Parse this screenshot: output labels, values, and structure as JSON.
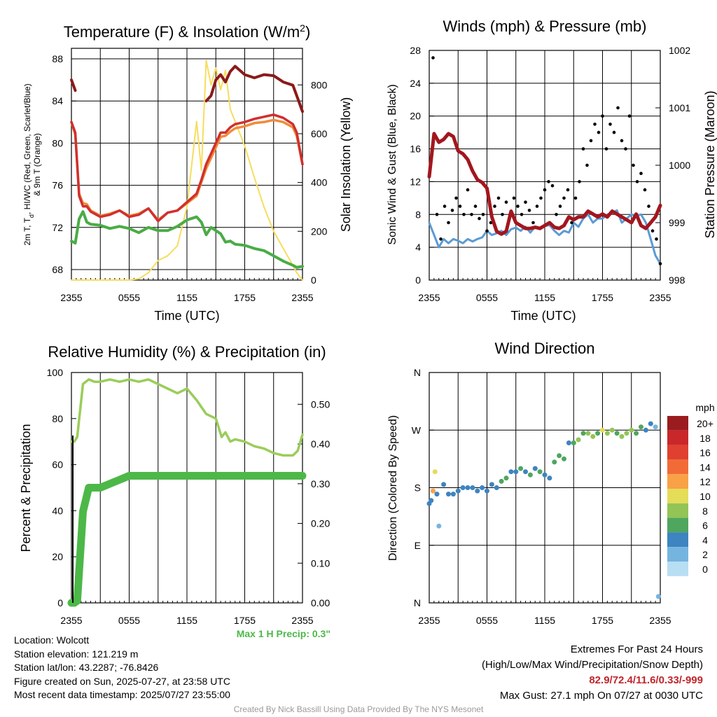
{
  "panels": {
    "temp": {
      "title_main": "Temperature (F) & Insolation (W/m",
      "title_sup": "2",
      "title_end": ")",
      "ylabel_left_line1": "2m T, T",
      "ylabel_left_sub": "d",
      "ylabel_left_rest": ", HI/WC (Red, Green, Scarlet/Blue)",
      "ylabel_left_line2": "& 9m T (Orange)",
      "ylabel_right": "Solar Insolation (Yellow)",
      "xlabel": "Time (UTC)"
    },
    "wind": {
      "title": "Winds (mph) & Pressure (mb)",
      "ylabel_left": "Sonic Wind & Gust (Blue, Black)",
      "ylabel_right": "Station Pressure (Maroon)",
      "xlabel": "Time (UTC)"
    },
    "rh": {
      "title": "Relative Humidity (%) & Precipitation (in)",
      "ylabel_left": "Percent & Precipitation",
      "annotation": "Max 1 H Precip: 0.3\""
    },
    "dir": {
      "title": "Wind Direction",
      "ylabel_left": "Direction (Colored By Speed)",
      "colorbar_title": "mph"
    }
  },
  "info": {
    "location": "Location: Wolcott",
    "elevation": "Station elevation: 121.219 m",
    "latlon": "Station lat/lon: 43.2287; -76.8426",
    "created": "Figure created on Sun, 2025-07-27, at 23:58 UTC",
    "recent": "Most recent data timestamp: 2025/07/27 23:55:00",
    "extremes_title": "Extremes For Past 24 Hours",
    "extremes_sub": "(High/Low/Max Wind/Precipitation/Snow Depth)",
    "extremes_values": "82.9/72.4/11.6/0.33/-999",
    "max_gust": "Max Gust: 27.1 mph On 07/27 at 0030 UTC",
    "credit": "Created By Nick Bassill Using Data Provided By The NYS Mesonet"
  },
  "colors": {
    "temp_red": "#d12f2f",
    "heat_index_scarlet": "#8b1a1a",
    "dewpoint_green": "#4aac45",
    "temp9m_orange": "#f08c3a",
    "solar_yellow": "#f7dd5e",
    "wind_blue": "#5b9bd5",
    "gust_black": "#000000",
    "pressure_maroon": "#a3161e",
    "rh_lightgreen": "#9acd59",
    "precip_green": "#4cb848",
    "extremes_red": "#c0262c"
  },
  "chart_data": [
    {
      "type": "line",
      "title": "Temperature (F) & Insolation (W/m2)",
      "xlabel": "Time (UTC)",
      "ylabel": "2m T, Td, HI/WC (Red, Green, Scarlet/Blue) & 9m T (Orange)",
      "y2label": "Solar Insolation (Yellow)",
      "x_ticks": [
        "2355",
        "0555",
        "1155",
        "1755",
        "2355"
      ],
      "ylim": [
        67,
        89
      ],
      "y_ticks": [
        68,
        72,
        76,
        80,
        84,
        88
      ],
      "y2lim": [
        0,
        950
      ],
      "y2_ticks": [
        0,
        200,
        400,
        600,
        800
      ],
      "x_hours": [
        0,
        0.4,
        0.8,
        1.2,
        1.6,
        2,
        3,
        4,
        5,
        6,
        7,
        8,
        9,
        10,
        11,
        12,
        13,
        13.5,
        14,
        14.5,
        15,
        15.5,
        16,
        16.5,
        17,
        18,
        19,
        20,
        21,
        22,
        23,
        23.4,
        24
      ],
      "series": [
        {
          "name": "2m T",
          "color": "#d12f2f",
          "values": [
            82,
            81,
            75,
            74,
            74,
            73.5,
            73,
            73.2,
            73.6,
            73,
            73.2,
            73.8,
            72.6,
            73.4,
            73.6,
            74.4,
            75.2,
            76.5,
            78,
            79,
            80,
            81,
            81,
            81.5,
            81.8,
            82,
            82.3,
            82.5,
            82.7,
            82.4,
            81.8,
            81,
            78
          ]
        },
        {
          "name": "9m T",
          "color": "#f08c3a",
          "values": [
            82,
            80.8,
            75.2,
            74.3,
            74.2,
            73.6,
            73.1,
            73.3,
            73.6,
            73.1,
            73.3,
            73.8,
            72.7,
            73.4,
            73.6,
            74.3,
            75,
            76.3,
            77.6,
            78.6,
            79.6,
            80.6,
            80.7,
            81.1,
            81.4,
            81.6,
            81.9,
            82,
            82.2,
            82,
            81.5,
            80.7,
            78
          ]
        },
        {
          "name": "Heat Index",
          "color": "#8b1a1a",
          "values": [
            86,
            85,
            null,
            null,
            null,
            null,
            null,
            null,
            null,
            null,
            null,
            null,
            null,
            null,
            null,
            null,
            null,
            null,
            84,
            84.5,
            86,
            86.5,
            85.8,
            86.8,
            87.3,
            86.5,
            86.2,
            86.5,
            86.4,
            85.8,
            85.5,
            84.5,
            83
          ]
        },
        {
          "name": "Td",
          "color": "#4aac45",
          "values": [
            70.7,
            70.5,
            72.8,
            73.5,
            72.5,
            72.3,
            72.2,
            71.9,
            72.1,
            71.9,
            71.5,
            72,
            71.7,
            71.7,
            72.1,
            72.7,
            73,
            72.5,
            71.3,
            72,
            71.7,
            71.4,
            70.6,
            70.7,
            70.4,
            70.3,
            70,
            69.8,
            69.3,
            68.8,
            68.4,
            68.2,
            68.3
          ]
        },
        {
          "name": "Solar",
          "color": "#f7dd5e",
          "yaxis": "right",
          "values": [
            0,
            0,
            0,
            0,
            0,
            0,
            0,
            0,
            0,
            0,
            5,
            30,
            80,
            100,
            140,
            300,
            650,
            450,
            900,
            800,
            870,
            780,
            860,
            700,
            650,
            550,
            420,
            300,
            200,
            130,
            60,
            30,
            0
          ]
        }
      ]
    },
    {
      "type": "line",
      "title": "Winds (mph) & Pressure (mb)",
      "xlabel": "Time (UTC)",
      "ylabel": "Sonic Wind & Gust (Blue, Black)",
      "y2label": "Station Pressure (Maroon)",
      "x_ticks": [
        "2355",
        "0555",
        "1155",
        "1755",
        "2355"
      ],
      "ylim": [
        0,
        28
      ],
      "y_ticks": [
        0,
        4,
        8,
        12,
        16,
        20,
        24,
        28
      ],
      "y2lim": [
        998,
        1002
      ],
      "y2_ticks": [
        998,
        999,
        1000,
        1001,
        1002
      ],
      "x_hours": [
        0,
        0.5,
        1,
        1.5,
        2,
        2.5,
        3,
        3.5,
        4,
        4.5,
        5,
        5.5,
        6,
        6.5,
        7,
        7.5,
        8,
        8.5,
        9,
        9.5,
        10,
        10.5,
        11,
        11.5,
        12,
        12.5,
        13,
        13.5,
        14,
        14.5,
        15,
        15.5,
        16,
        16.5,
        17,
        17.5,
        18,
        18.5,
        19,
        19.5,
        20,
        20.5,
        21,
        21.5,
        22,
        22.5,
        23,
        23.5,
        24
      ],
      "series": [
        {
          "name": "Wind",
          "color": "#5b9bd5",
          "values": [
            7,
            5.5,
            4,
            5,
            4.5,
            5,
            4.8,
            4.5,
            5,
            4.7,
            5,
            5.2,
            6,
            5.5,
            5.7,
            6,
            5.5,
            6.2,
            6.4,
            6,
            6.5,
            5.8,
            6.5,
            6.2,
            6.6,
            6.7,
            6,
            5.5,
            6,
            5.8,
            7,
            6.5,
            7.5,
            8,
            7,
            7.5,
            7.5,
            8,
            8.2,
            8.5,
            7,
            7.5,
            8,
            7.8,
            8,
            7,
            5,
            3,
            2
          ]
        },
        {
          "name": "Pressure",
          "color": "#a3161e",
          "yaxis": "right",
          "values": [
            999.8,
            1000.55,
            1000.4,
            1000.45,
            1000.55,
            1000.5,
            1000.25,
            1000.2,
            1000.1,
            999.9,
            999.75,
            999.7,
            999.6,
            999.1,
            998.85,
            998.8,
            998.85,
            999.2,
            999.0,
            998.95,
            998.9,
            998.9,
            998.92,
            998.9,
            998.95,
            999.0,
            998.92,
            998.9,
            998.95,
            999.1,
            999.05,
            999.1,
            999.1,
            999.2,
            999.15,
            999.1,
            999.15,
            999.1,
            999.2,
            999.15,
            999.1,
            999.05,
            999.0,
            999.15,
            998.95,
            998.9,
            999.0,
            999.1,
            999.3
          ]
        }
      ],
      "gusts": {
        "x_hours": [
          0.4,
          0.8,
          1.2,
          1.6,
          2.0,
          2.4,
          2.8,
          3.2,
          3.6,
          4.0,
          4.4,
          4.8,
          5.2,
          5.6,
          6.0,
          6.4,
          6.8,
          7.2,
          7.6,
          8.0,
          8.4,
          8.8,
          9.2,
          9.6,
          10.0,
          10.4,
          10.8,
          11.2,
          11.6,
          12.0,
          12.4,
          12.8,
          13.2,
          13.6,
          14.0,
          14.4,
          14.8,
          15.2,
          15.6,
          16.0,
          16.4,
          16.8,
          17.2,
          17.6,
          18.0,
          18.4,
          18.8,
          19.2,
          19.6,
          20.0,
          20.4,
          20.8,
          21.2,
          21.6,
          22.0,
          22.4,
          22.8,
          23.2,
          23.6,
          24.0
        ],
        "values": [
          27.1,
          8,
          5,
          9,
          7,
          8.5,
          10,
          9,
          8,
          11,
          8,
          9,
          7.5,
          8,
          6,
          7,
          9,
          10,
          8,
          9.5,
          8,
          10,
          9,
          8,
          9.5,
          8.5,
          7,
          9,
          10,
          11,
          12,
          11.5,
          8,
          9,
          10,
          11,
          7,
          10,
          12,
          16,
          14,
          17,
          19,
          18,
          20,
          16,
          19,
          18,
          21,
          17,
          16,
          20,
          14,
          12,
          13,
          11,
          9,
          6,
          5,
          2
        ]
      }
    },
    {
      "type": "line",
      "title": "Relative Humidity (%) & Precipitation (in)",
      "ylabel": "Percent & Precipitation",
      "x_ticks": [
        "2355",
        "0555",
        "1155",
        "1755",
        "2355"
      ],
      "ylim": [
        0,
        100
      ],
      "y_ticks": [
        0,
        20,
        40,
        60,
        80,
        100
      ],
      "y2lim": [
        0,
        0.58
      ],
      "y2_ticks": [
        "0.00",
        "0.10",
        "0.20",
        "0.30",
        "0.40",
        "0.50"
      ],
      "annotation": "Max 1 H Precip: 0.3\"",
      "x_hours": [
        0,
        0.3,
        0.6,
        1.2,
        1.8,
        2.4,
        3,
        4,
        5,
        6,
        7,
        8,
        9,
        10,
        11,
        12,
        13,
        14,
        15,
        15.6,
        16,
        16.5,
        17,
        18,
        19,
        20,
        21,
        22,
        23,
        23.5,
        24
      ],
      "series": [
        {
          "name": "RH",
          "color": "#9acd59",
          "values": [
            70,
            70,
            72,
            95,
            97,
            96,
            96,
            97,
            96,
            97,
            96,
            97,
            95,
            93,
            91,
            93,
            88,
            82,
            80,
            72,
            74,
            70,
            71,
            70,
            68,
            67,
            65,
            64,
            64,
            66,
            73
          ]
        },
        {
          "name": "Precip",
          "color": "#4cb848",
          "yaxis": "right",
          "values": [
            0,
            0,
            0.005,
            0.23,
            0.29,
            0.29,
            0.29,
            0.3,
            0.31,
            0.32,
            0.32,
            0.32,
            0.32,
            0.32,
            0.32,
            0.32,
            0.32,
            0.32,
            0.32,
            0.32,
            0.32,
            0.32,
            0.32,
            0.32,
            0.32,
            0.32,
            0.32,
            0.32,
            0.32,
            0.32,
            0.32
          ]
        }
      ]
    },
    {
      "type": "scatter",
      "title": "Wind Direction",
      "ylabel": "Direction (Colored By Speed)",
      "x_ticks": [
        "2355",
        "0555",
        "1155",
        "1755",
        "2355"
      ],
      "y_ticks": [
        "N",
        "E",
        "S",
        "W",
        "N"
      ],
      "ylim": [
        0,
        360
      ],
      "colorbar": {
        "title": "mph",
        "labels": [
          "20+",
          "18",
          "16",
          "14",
          "12",
          "10",
          "8",
          "6",
          "4",
          "2",
          "0"
        ],
        "colors": [
          "#9b1c1f",
          "#c9272a",
          "#e0402f",
          "#f26b36",
          "#f9a146",
          "#e5dc58",
          "#93c456",
          "#4ea65f",
          "#3d84c0",
          "#76b4e0",
          "#b8def4"
        ]
      },
      "x_hours": [
        0,
        0.2,
        0.4,
        0.6,
        0.8,
        1.0,
        1.5,
        2.0,
        2.5,
        3.0,
        3.5,
        4.0,
        4.5,
        5.0,
        5.5,
        6.0,
        6.5,
        7.0,
        7.5,
        8.0,
        8.5,
        9.0,
        9.5,
        10.0,
        10.5,
        11.0,
        11.5,
        12.0,
        12.5,
        13.0,
        13.5,
        14.0,
        14.5,
        15.0,
        15.5,
        16.0,
        16.5,
        17.0,
        17.5,
        18.0,
        18.5,
        19.0,
        19.5,
        20.0,
        20.5,
        21.0,
        21.5,
        22.0,
        22.5,
        23.0,
        23.5,
        23.8
      ],
      "values": [
        155,
        160,
        175,
        205,
        170,
        120,
        185,
        170,
        170,
        175,
        180,
        180,
        180,
        175,
        180,
        175,
        185,
        180,
        190,
        195,
        205,
        205,
        210,
        205,
        200,
        210,
        205,
        200,
        195,
        220,
        230,
        225,
        250,
        250,
        255,
        265,
        265,
        260,
        265,
        270,
        265,
        270,
        265,
        260,
        265,
        270,
        265,
        275,
        270,
        280,
        275,
        10
      ],
      "speeds": [
        3,
        4,
        12,
        10,
        4,
        2,
        3,
        4,
        4,
        3,
        4,
        4,
        3,
        4,
        4,
        4,
        4,
        4,
        5,
        5,
        4,
        4,
        5,
        4,
        5,
        4,
        5,
        4,
        4,
        5,
        6,
        6,
        4,
        5,
        7,
        6,
        8,
        7,
        6,
        9,
        7,
        8,
        6,
        7,
        8,
        7,
        6,
        5,
        4,
        3,
        2,
        2
      ]
    }
  ]
}
